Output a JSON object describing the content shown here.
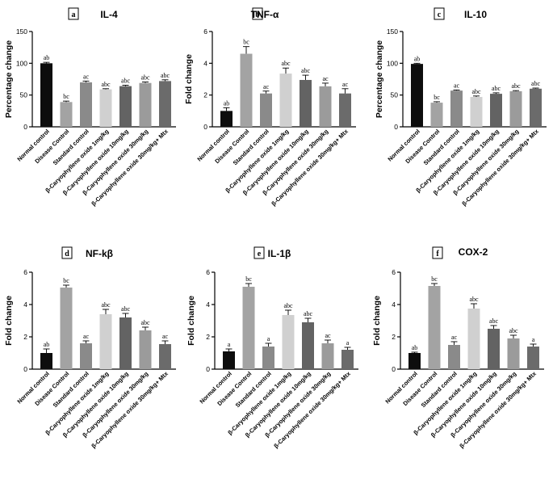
{
  "chart_data": [
    {
      "panel": "a",
      "type": "bar",
      "title": "IL-4",
      "ylabel": "Percentage change",
      "ylim": [
        0,
        150
      ],
      "yticks": [
        0,
        50,
        100,
        150
      ],
      "categories": [
        "Normal control",
        "Disease Control",
        "Standard control",
        "β-Caryophyllene oxide 1mg/kg",
        "β-Caryophyllene oxide 10mg/kg",
        "β-Caryophyllene oxide 30mg/kg",
        "β-Caryophyllene oxide 30mg/kg+ Mtx"
      ],
      "values": [
        100,
        39,
        70,
        59,
        64,
        69,
        72
      ],
      "errors": [
        1.5,
        1.5,
        2,
        1,
        1.5,
        1.5,
        2
      ],
      "significance": [
        "ab",
        "bc",
        "ac",
        "abc",
        "abc",
        "abc",
        "abc"
      ]
    },
    {
      "panel": "b",
      "type": "bar",
      "title": "TNF-α",
      "ylabel": "Fold change",
      "ylim": [
        0,
        6
      ],
      "yticks": [
        0,
        2,
        4,
        6
      ],
      "categories": [
        "Normal control",
        "Disease Control",
        "Standard control",
        "β-Caryophyllene oxide 1mg/kg",
        "β-Caryophyllene oxide 10mg/kg",
        "β-Caryophyllene oxide 30mg/kg",
        "β-Caryophyllene oxide 30mg/kg+ Mtx"
      ],
      "values": [
        1.0,
        4.6,
        2.1,
        3.35,
        2.95,
        2.55,
        2.1
      ],
      "errors": [
        0.2,
        0.45,
        0.15,
        0.35,
        0.3,
        0.2,
        0.3
      ],
      "significance": [
        "ab",
        "bc",
        "ac",
        "abc",
        "abc",
        "ac",
        "ac"
      ]
    },
    {
      "panel": "c",
      "type": "bar",
      "title": "IL-10",
      "ylabel": "Percentage change",
      "ylim": [
        0,
        150
      ],
      "yticks": [
        0,
        50,
        100,
        150
      ],
      "categories": [
        "Normal control",
        "Disease Control",
        "Standard control",
        "β-Caryophyllene oxide 1mg/kg",
        "β-Caryophyllene oxide 10mg/kg",
        "β-Caryophyllene oxide 30mg/kg",
        "β-Caryophyllene oxide 30mg/kg+ Mtx"
      ],
      "values": [
        99,
        38,
        57,
        47,
        52,
        56,
        60
      ],
      "errors": [
        1,
        1.5,
        1,
        1.5,
        1.5,
        1,
        1
      ],
      "significance": [
        "ab",
        "bc",
        "ac",
        "abc",
        "abc",
        "abc",
        "abc"
      ]
    },
    {
      "panel": "d",
      "type": "bar",
      "title": "NF-kβ",
      "ylabel": "Fold change",
      "ylim": [
        0,
        6
      ],
      "yticks": [
        0,
        2,
        4,
        6
      ],
      "categories": [
        "Normal control",
        "Disease Control",
        "Standard control",
        "β-Caryophyllene oxide 1mg/kg",
        "β-Caryophyllene oxide 10mg/kg",
        "β-Caryophyllene oxide 30mg/kg",
        "β-Caryophyllene oxide 30mg/kg+ Mtx"
      ],
      "values": [
        1.0,
        5.05,
        1.6,
        3.4,
        3.2,
        2.4,
        1.55
      ],
      "errors": [
        0.25,
        0.15,
        0.15,
        0.3,
        0.25,
        0.2,
        0.2
      ],
      "significance": [
        "ab",
        "bc",
        "ac",
        "abc",
        "abc",
        "abc",
        "ac"
      ]
    },
    {
      "panel": "e",
      "type": "bar",
      "title": "IL-1β",
      "ylabel": "Fold change",
      "ylim": [
        0,
        6
      ],
      "yticks": [
        0,
        2,
        4,
        6
      ],
      "categories": [
        "Normal control",
        "Disease Control",
        "Standard control",
        "β-Caryophyllene oxide 1mg/kg",
        "β-Caryophyllene oxide 10mg/kg",
        "β-Caryophyllene oxide 30mg/kg",
        "β-Caryophyllene oxide 30mg/kg+ Mtx"
      ],
      "values": [
        1.1,
        5.1,
        1.4,
        3.35,
        2.9,
        1.6,
        1.2
      ],
      "errors": [
        0.15,
        0.2,
        0.2,
        0.3,
        0.25,
        0.2,
        0.15
      ],
      "significance": [
        "a",
        "bc",
        "a",
        "abc",
        "abc",
        "ac",
        "a"
      ]
    },
    {
      "panel": "f",
      "type": "bar",
      "title": "COX-2",
      "ylabel": "Fold change",
      "ylim": [
        0,
        6
      ],
      "yticks": [
        0,
        2,
        4,
        6
      ],
      "categories": [
        "Normal control",
        "Disease Control",
        "Standard control",
        "β-Caryophyllene oxide 1mg/kg",
        "β-Caryophyllene oxide 10mg/kg",
        "β-Caryophyllene oxide 30mg/kg",
        "β-Caryophyllene oxide 30mg/kg+ Mtx"
      ],
      "values": [
        1.0,
        5.15,
        1.5,
        3.75,
        2.5,
        1.9,
        1.4
      ],
      "errors": [
        0.05,
        0.15,
        0.2,
        0.3,
        0.2,
        0.2,
        0.15
      ],
      "significance": [
        "ab",
        "bc",
        "ac",
        "abc",
        "abc",
        "abc",
        "a"
      ]
    }
  ],
  "colors": {
    "bars": [
      "#0d0d0d",
      "#a3a3a3",
      "#8a8a8a",
      "#d0d0d0",
      "#636363",
      "#9b9b9b",
      "#6b6b6b"
    ],
    "axis": "#000000"
  }
}
